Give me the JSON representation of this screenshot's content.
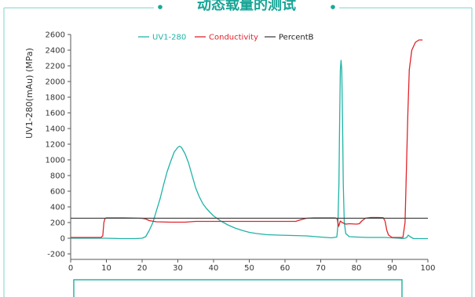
{
  "header": {
    "title": "动态载量的测试"
  },
  "chart_data": {
    "type": "line",
    "ylabel": "UV1-280(mAu) (MPa)",
    "xlim": [
      0,
      100
    ],
    "ylim": [
      -200,
      2600
    ],
    "xticks": [
      0,
      10,
      20,
      30,
      40,
      50,
      60,
      70,
      80,
      90,
      100
    ],
    "yticks": [
      -200,
      0,
      200,
      400,
      600,
      800,
      1000,
      1200,
      1400,
      1600,
      1800,
      2000,
      2200,
      2400,
      2600
    ],
    "grid": false,
    "legend_position": "top",
    "series": [
      {
        "name": "UV1-280",
        "color": "#1fb3a6",
        "points": [
          [
            0,
            0
          ],
          [
            5,
            0
          ],
          [
            10,
            0
          ],
          [
            14,
            -5
          ],
          [
            18,
            -5
          ],
          [
            20,
            0
          ],
          [
            21,
            20
          ],
          [
            22,
            100
          ],
          [
            23,
            200
          ],
          [
            24,
            350
          ],
          [
            25,
            500
          ],
          [
            26,
            680
          ],
          [
            27,
            850
          ],
          [
            28,
            980
          ],
          [
            29,
            1100
          ],
          [
            30,
            1160
          ],
          [
            30.5,
            1175
          ],
          [
            31,
            1160
          ],
          [
            32,
            1080
          ],
          [
            33,
            960
          ],
          [
            34,
            800
          ],
          [
            35,
            640
          ],
          [
            36,
            530
          ],
          [
            37,
            440
          ],
          [
            38,
            380
          ],
          [
            39,
            330
          ],
          [
            40,
            285
          ],
          [
            42,
            220
          ],
          [
            44,
            170
          ],
          [
            46,
            130
          ],
          [
            48,
            100
          ],
          [
            50,
            75
          ],
          [
            52,
            60
          ],
          [
            55,
            45
          ],
          [
            58,
            40
          ],
          [
            62,
            35
          ],
          [
            66,
            30
          ],
          [
            70,
            15
          ],
          [
            73,
            5
          ],
          [
            74.5,
            15
          ],
          [
            74.8,
            150
          ],
          [
            75.1,
            700
          ],
          [
            75.3,
            1500
          ],
          [
            75.5,
            2150
          ],
          [
            75.7,
            2270
          ],
          [
            75.9,
            2150
          ],
          [
            76.1,
            1500
          ],
          [
            76.3,
            700
          ],
          [
            76.6,
            200
          ],
          [
            77,
            60
          ],
          [
            78,
            20
          ],
          [
            80,
            15
          ],
          [
            83,
            10
          ],
          [
            86,
            10
          ],
          [
            88,
            10
          ],
          [
            90,
            5
          ],
          [
            92,
            0
          ],
          [
            93,
            -5
          ],
          [
            94,
            5
          ],
          [
            94.5,
            40
          ],
          [
            95,
            20
          ],
          [
            96,
            -5
          ],
          [
            100,
            -5
          ]
        ]
      },
      {
        "name": "Conductivity",
        "color": "#e0242b",
        "points": [
          [
            0,
            10
          ],
          [
            5,
            10
          ],
          [
            8.5,
            10
          ],
          [
            9,
            30
          ],
          [
            9.3,
            200
          ],
          [
            9.6,
            250
          ],
          [
            10,
            260
          ],
          [
            15,
            260
          ],
          [
            20,
            255
          ],
          [
            21,
            245
          ],
          [
            22,
            225
          ],
          [
            24,
            210
          ],
          [
            28,
            205
          ],
          [
            32,
            205
          ],
          [
            35,
            215
          ],
          [
            40,
            215
          ],
          [
            50,
            215
          ],
          [
            60,
            215
          ],
          [
            63,
            215
          ],
          [
            64,
            230
          ],
          [
            66,
            255
          ],
          [
            68,
            260
          ],
          [
            72,
            260
          ],
          [
            74,
            260
          ],
          [
            74.6,
            250
          ],
          [
            75,
            150
          ],
          [
            75.5,
            220
          ],
          [
            76,
            200
          ],
          [
            77,
            180
          ],
          [
            78,
            185
          ],
          [
            80,
            180
          ],
          [
            80.8,
            185
          ],
          [
            81.5,
            220
          ],
          [
            82.5,
            255
          ],
          [
            84,
            265
          ],
          [
            86,
            265
          ],
          [
            87.5,
            262
          ],
          [
            88,
            220
          ],
          [
            88.5,
            100
          ],
          [
            89,
            40
          ],
          [
            90,
            10
          ],
          [
            92,
            10
          ],
          [
            93,
            10
          ],
          [
            93.6,
            200
          ],
          [
            94,
            900
          ],
          [
            94.4,
            1600
          ],
          [
            94.8,
            2150
          ],
          [
            95.5,
            2400
          ],
          [
            96.5,
            2500
          ],
          [
            97.5,
            2530
          ],
          [
            98.5,
            2530
          ]
        ]
      },
      {
        "name": "PercentB",
        "color": "#444444",
        "points": [
          [
            0,
            255
          ],
          [
            100,
            255
          ]
        ]
      }
    ]
  }
}
